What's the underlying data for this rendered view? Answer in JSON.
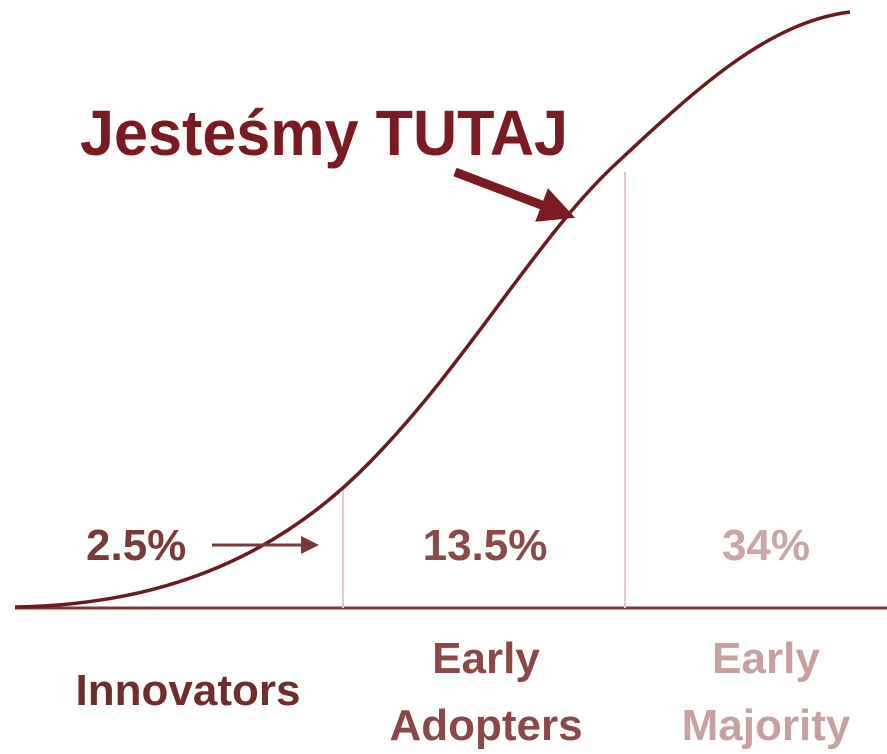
{
  "title": "Jesteśmy TUTAJ",
  "segments": [
    {
      "share": "2.5%",
      "label": [
        "Innovators"
      ]
    },
    {
      "share": "13.5%",
      "label": [
        "Early",
        "Adopters"
      ]
    },
    {
      "share": "34%",
      "label": [
        "Early",
        "Majority"
      ]
    }
  ]
}
